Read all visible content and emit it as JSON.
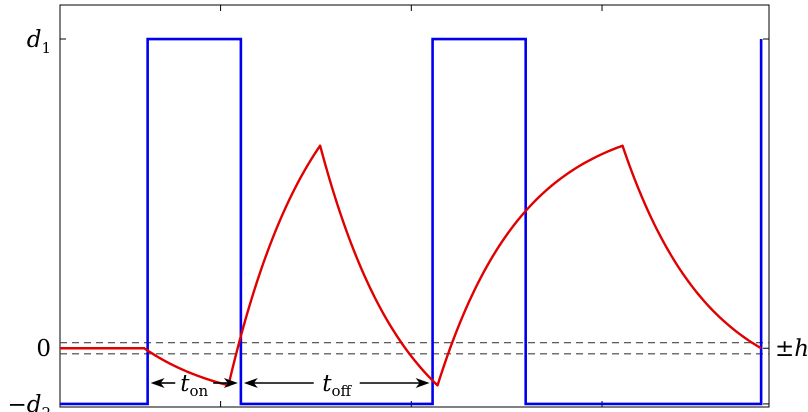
{
  "chart_data": {
    "type": "line",
    "title": "",
    "xlabel": "",
    "ylabel": "",
    "grid": false,
    "xlim": [
      0,
      1
    ],
    "ylim": [
      -0.19,
      1.11
    ],
    "y_ticks": [
      {
        "value": 1.0,
        "label_italic": "d",
        "label_sub": "1"
      },
      {
        "value": 0.0,
        "label_plain": "0"
      },
      {
        "value": -0.18,
        "label_prefix": "−",
        "label_italic": "d",
        "label_sub": "2"
      }
    ],
    "x_ticks_unlabeled": [
      0.2265,
      0.4955,
      0.7645
    ],
    "threshold_band": {
      "upper": 0.018,
      "lower": -0.018,
      "label_prefix": "±",
      "label_italic": "h"
    },
    "series": [
      {
        "role": "input",
        "color": "#0000ee",
        "x": [
          0,
          0.1236,
          0.1236,
          0.2551,
          0.2551,
          0.5255,
          0.5255,
          0.6568,
          0.6568,
          0.9889,
          0.9889
        ],
        "y": [
          -0.18,
          -0.18,
          1.0,
          1.0,
          -0.18,
          -0.18,
          1.0,
          1.0,
          -0.18,
          -0.18,
          1.0
        ]
      },
      {
        "role": "output",
        "color": "#e00000",
        "segments": [
          {
            "x": [
              0,
              0.1189
            ],
            "y": [
              0,
              0
            ]
          },
          {
            "kind": "decay",
            "x0": 0.1189,
            "y0": 0,
            "x1": 0.2376,
            "y1": -0.12,
            "target": -0.18,
            "tau": 0.12
          },
          {
            "kind": "rise",
            "x0": 0.2376,
            "y0": -0.12,
            "x1": 0.3669,
            "y1": 0.655,
            "target": 1.0,
            "tau": 0.12
          },
          {
            "kind": "fall",
            "x0": 0.3669,
            "y0": 0.655,
            "x1": 0.5325,
            "y1": -0.12,
            "target": -0.18,
            "tau": 0.12
          },
          {
            "kind": "rise",
            "x0": 0.5325,
            "y0": -0.12,
            "x1": 0.7934,
            "y1": 0.655,
            "target": 1.0,
            "tau": 0.12
          },
          {
            "kind": "fall",
            "x0": 0.7934,
            "y0": 0.655,
            "x1": 0.9889,
            "y1": 0.0,
            "target": -0.18,
            "tau": 0.12
          }
        ]
      }
    ],
    "annotations": [
      {
        "text_italic": "t",
        "text_sub": "on",
        "x_from": 0.1236,
        "x_to": 0.2551
      },
      {
        "text_italic": "t",
        "text_sub": "off",
        "x_from": 0.2551,
        "x_to": 0.5255
      }
    ]
  }
}
